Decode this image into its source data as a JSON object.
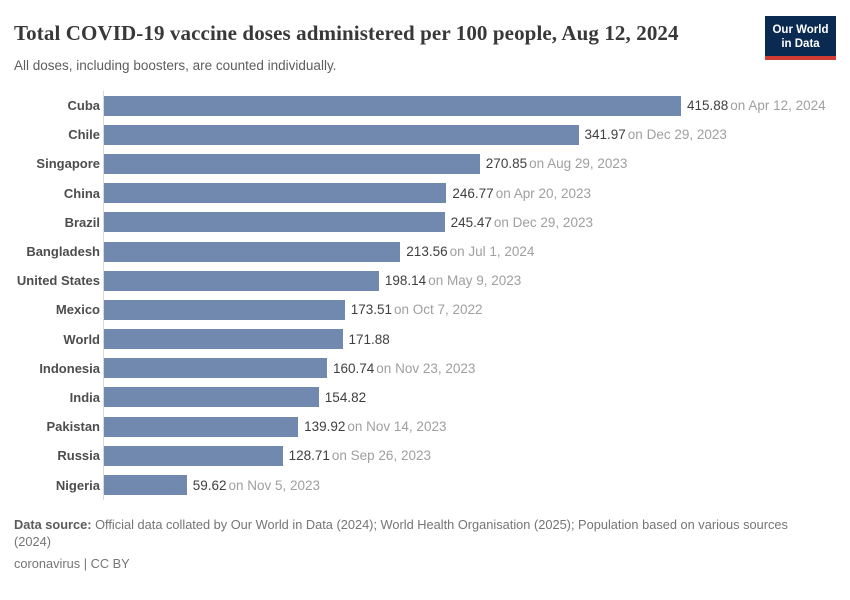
{
  "header": {
    "title": "Total COVID-19 vaccine doses administered per 100 people, Aug 12, 2024",
    "subtitle": "All doses, including boosters, are counted individually.",
    "logo": {
      "line1": "Our World",
      "line2": "in Data",
      "bg_color": "#0b2a52",
      "accent_color": "#d13b32"
    }
  },
  "chart_data": {
    "type": "bar",
    "orientation": "horizontal",
    "title": "Total COVID-19 vaccine doses administered per 100 people, Aug 12, 2024",
    "subtitle": "All doses, including boosters, are counted individually.",
    "unit": "doses per 100 people",
    "xlim": [
      0,
      415.88
    ],
    "grid": false,
    "legend": "none",
    "bar_color": "#7189ae",
    "axis_line_color": "#d9d9d9",
    "entities": [
      {
        "label": "Cuba",
        "value": 415.88,
        "value_label": "415.88",
        "date_label": "on Apr 12, 2024"
      },
      {
        "label": "Chile",
        "value": 341.97,
        "value_label": "341.97",
        "date_label": "on Dec 29, 2023"
      },
      {
        "label": "Singapore",
        "value": 270.85,
        "value_label": "270.85",
        "date_label": "on Aug 29, 2023"
      },
      {
        "label": "China",
        "value": 246.77,
        "value_label": "246.77",
        "date_label": "on Apr 20, 2023"
      },
      {
        "label": "Brazil",
        "value": 245.47,
        "value_label": "245.47",
        "date_label": "on Dec 29, 2023"
      },
      {
        "label": "Bangladesh",
        "value": 213.56,
        "value_label": "213.56",
        "date_label": "on Jul 1, 2024"
      },
      {
        "label": "United States",
        "value": 198.14,
        "value_label": "198.14",
        "date_label": "on May 9, 2023"
      },
      {
        "label": "Mexico",
        "value": 173.51,
        "value_label": "173.51",
        "date_label": "on Oct 7, 2022"
      },
      {
        "label": "World",
        "value": 171.88,
        "value_label": "171.88",
        "date_label": ""
      },
      {
        "label": "Indonesia",
        "value": 160.74,
        "value_label": "160.74",
        "date_label": "on Nov 23, 2023"
      },
      {
        "label": "India",
        "value": 154.82,
        "value_label": "154.82",
        "date_label": ""
      },
      {
        "label": "Pakistan",
        "value": 139.92,
        "value_label": "139.92",
        "date_label": "on Nov 14, 2023"
      },
      {
        "label": "Russia",
        "value": 128.71,
        "value_label": "128.71",
        "date_label": "on Sep 26, 2023"
      },
      {
        "label": "Nigeria",
        "value": 59.62,
        "value_label": "59.62",
        "date_label": "on Nov 5, 2023"
      }
    ]
  },
  "footer": {
    "datasource_label": "Data source:",
    "datasource_text": "Official data collated by Our World in Data (2024); World Health Organisation (2025); Population based on various sources (2024)",
    "note": "coronavirus | CC BY"
  }
}
